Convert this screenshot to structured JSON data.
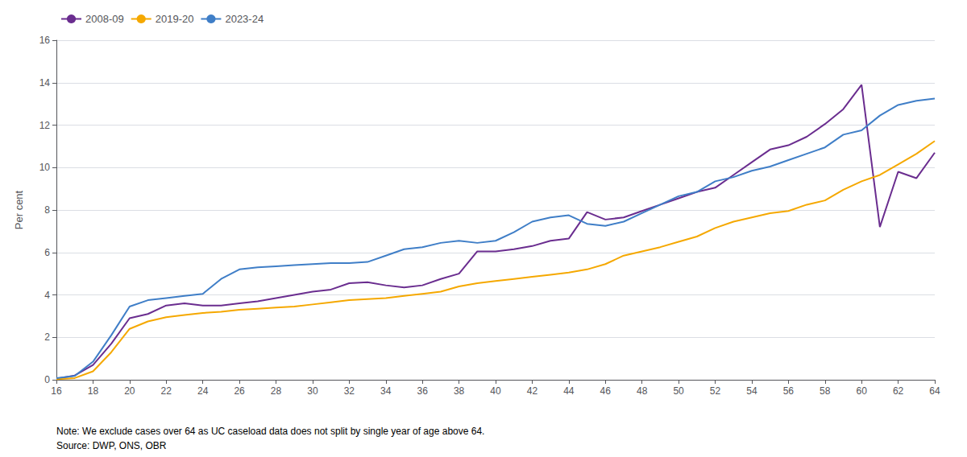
{
  "chart_data": {
    "type": "line",
    "ylabel": "Per cent",
    "annotations": [
      "Note: We exclude cases over 64 as UC caseload data does not split by single year of age above 64.",
      "Source: DWP, ONS, OBR"
    ],
    "x": [
      16,
      17,
      18,
      19,
      20,
      21,
      22,
      23,
      24,
      25,
      26,
      27,
      28,
      29,
      30,
      31,
      32,
      33,
      34,
      35,
      36,
      37,
      38,
      39,
      40,
      41,
      42,
      43,
      44,
      45,
      46,
      47,
      48,
      49,
      50,
      51,
      52,
      53,
      54,
      55,
      56,
      57,
      58,
      59,
      60,
      61,
      62,
      63,
      64
    ],
    "series": [
      {
        "name": "2008-09",
        "color": "#6A2D8F",
        "values": [
          0.05,
          0.2,
          0.7,
          1.7,
          2.9,
          3.1,
          3.5,
          3.6,
          3.5,
          3.5,
          3.6,
          3.7,
          3.85,
          4.0,
          4.15,
          4.25,
          4.55,
          4.6,
          4.45,
          4.35,
          4.45,
          4.75,
          5.0,
          6.05,
          6.05,
          6.15,
          6.3,
          6.55,
          6.65,
          7.9,
          7.55,
          7.65,
          7.95,
          8.25,
          8.55,
          8.85,
          9.05,
          9.65,
          10.25,
          10.85,
          11.05,
          11.45,
          12.05,
          12.75,
          13.9,
          7.2,
          9.8,
          9.5,
          10.7
        ]
      },
      {
        "name": "2019-20",
        "color": "#F5A800",
        "values": [
          0.03,
          0.08,
          0.4,
          1.3,
          2.4,
          2.75,
          2.95,
          3.05,
          3.15,
          3.2,
          3.3,
          3.35,
          3.4,
          3.45,
          3.55,
          3.65,
          3.75,
          3.8,
          3.85,
          3.95,
          4.05,
          4.15,
          4.4,
          4.55,
          4.65,
          4.75,
          4.85,
          4.95,
          5.05,
          5.2,
          5.45,
          5.85,
          6.05,
          6.25,
          6.5,
          6.75,
          7.15,
          7.45,
          7.65,
          7.85,
          7.95,
          8.25,
          8.45,
          8.95,
          9.35,
          9.65,
          10.15,
          10.65,
          11.25
        ]
      },
      {
        "name": "2023-24",
        "color": "#3F7EC7",
        "values": [
          0.08,
          0.18,
          0.85,
          2.1,
          3.45,
          3.75,
          3.85,
          3.95,
          4.05,
          4.75,
          5.2,
          5.3,
          5.35,
          5.4,
          5.45,
          5.5,
          5.5,
          5.55,
          5.85,
          6.15,
          6.25,
          6.45,
          6.55,
          6.45,
          6.55,
          6.95,
          7.45,
          7.65,
          7.75,
          7.35,
          7.25,
          7.45,
          7.85,
          8.25,
          8.65,
          8.85,
          9.35,
          9.55,
          9.85,
          10.05,
          10.35,
          10.65,
          10.95,
          11.55,
          11.75,
          12.45,
          12.95,
          13.15,
          13.25
        ]
      }
    ],
    "xlim": [
      16,
      64
    ],
    "xticks": [
      16,
      18,
      20,
      22,
      24,
      26,
      28,
      30,
      32,
      34,
      36,
      38,
      40,
      42,
      44,
      46,
      48,
      50,
      52,
      54,
      56,
      58,
      60,
      62,
      64
    ],
    "ylim": [
      0,
      16
    ],
    "yticks": [
      0,
      2,
      4,
      6,
      8,
      10,
      12,
      14,
      16
    ],
    "grid": "y",
    "legend": "upper left"
  }
}
